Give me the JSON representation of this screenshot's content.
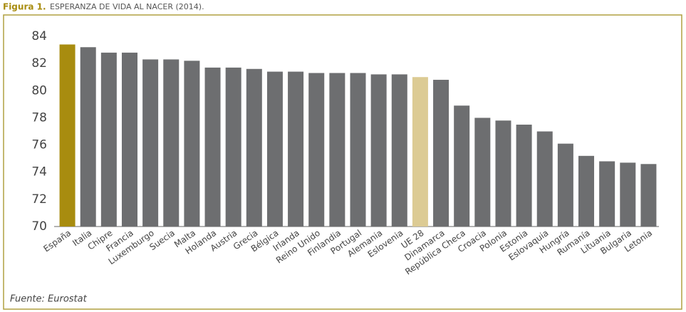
{
  "chart_data": {
    "type": "bar",
    "title": "Figura 1.",
    "subtitle": "ESPERANZA DE VIDA AL NACER (2014).",
    "source": "Fuente: Eurostat",
    "categories": [
      "España",
      "Italia",
      "Chipre",
      "Francia",
      "Luxemburgo",
      "Suecia",
      "Malta",
      "Holanda",
      "Austria",
      "Grecia",
      "Bélgica",
      "Irlanda",
      "Reino Unido",
      "Finlandia",
      "Portugal",
      "Alemania",
      "Eslovenia",
      "UE 28",
      "Dinamarca",
      "República Checa",
      "Croacia",
      "Polonia",
      "Estonia",
      "Eslovaquia",
      "Hungría",
      "Rumanía",
      "Lituania",
      "Bulgaria",
      "Letonia"
    ],
    "values": [
      83.4,
      83.2,
      82.8,
      82.8,
      82.3,
      82.3,
      82.2,
      81.7,
      81.7,
      81.6,
      81.4,
      81.4,
      81.3,
      81.3,
      81.3,
      81.2,
      81.2,
      81.0,
      80.8,
      78.9,
      78.0,
      77.8,
      77.5,
      77.0,
      76.1,
      75.2,
      74.8,
      74.7,
      74.6
    ],
    "colors": [
      "#a88c0f",
      "#6d6e70",
      "#6d6e70",
      "#6d6e70",
      "#6d6e70",
      "#6d6e70",
      "#6d6e70",
      "#6d6e70",
      "#6d6e70",
      "#6d6e70",
      "#6d6e70",
      "#6d6e70",
      "#6d6e70",
      "#6d6e70",
      "#6d6e70",
      "#6d6e70",
      "#6d6e70",
      "#dccb94",
      "#6d6e70",
      "#6d6e70",
      "#6d6e70",
      "#6d6e70",
      "#6d6e70",
      "#6d6e70",
      "#6d6e70",
      "#6d6e70",
      "#6d6e70",
      "#6d6e70",
      "#6d6e70"
    ],
    "ylim": [
      70,
      84
    ],
    "yticks": [
      70,
      72,
      74,
      76,
      78,
      80,
      82,
      84
    ],
    "grid": false
  }
}
